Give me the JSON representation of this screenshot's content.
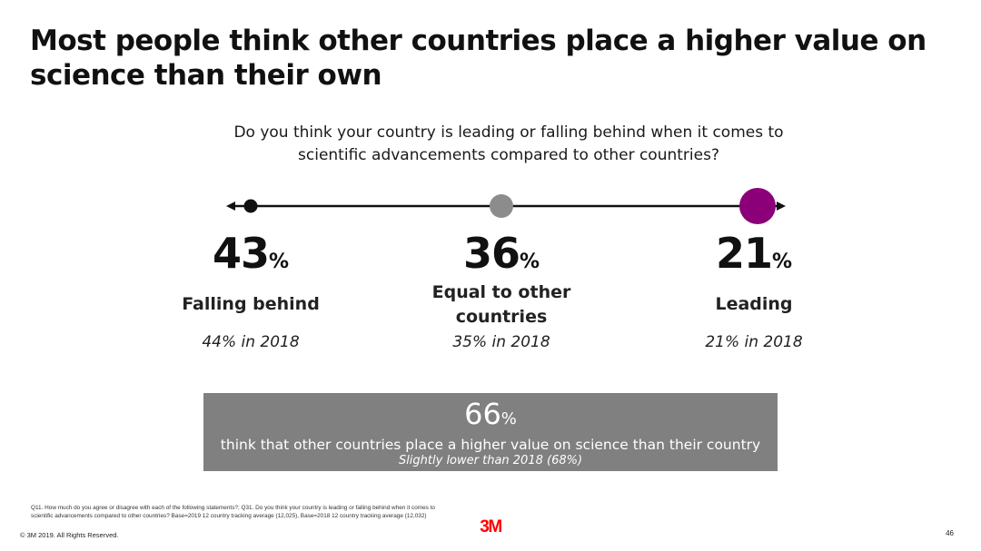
{
  "title": "Most people think other countries place a higher value on science than their own",
  "question": "Do you think your country is leading or falling behind when it comes to scientific advancements compared to other countries?",
  "colors": {
    "falling_behind": "#111111",
    "equal": "#8c8c8c",
    "leading": "#8b0079",
    "summary_bg": "#808080",
    "logo": "#ff0000"
  },
  "chart_data": {
    "type": "scale",
    "question": "Do you think your country is leading or falling behind when it comes to scientific advancements compared to other countries?",
    "categories": [
      "Falling behind",
      "Equal to other countries",
      "Leading"
    ],
    "values": [
      43,
      36,
      21
    ],
    "unit": "%",
    "prior_year": 2018,
    "prior_values": [
      44,
      35,
      21
    ],
    "prior_labels": [
      "44% in 2018",
      "35% in 2018",
      "21% in 2018"
    ]
  },
  "items": [
    {
      "value": "43",
      "unit": "%",
      "label": "Falling behind",
      "prior": "44% in 2018"
    },
    {
      "value": "36",
      "unit": "%",
      "label": "Equal to other countries",
      "prior": "35% in 2018"
    },
    {
      "value": "21",
      "unit": "%",
      "label": "Leading",
      "prior": "21% in 2018"
    }
  ],
  "summary": {
    "value": "66",
    "unit": "%",
    "text": "think that other countries place a higher value on science than their country",
    "note": "Slightly lower than 2018 (68%)"
  },
  "footnote": "Q11. How much do you agree or disagree with each of the following statements?; Q31. Do you think your country is leading or falling behind when it comes to scientific advancements compared to other countries? Base=2019 12 country tracking average (12,025), Base=2018 12 country tracking average (12,032)",
  "copyright": "© 3M 2019.   All Rights Reserved.",
  "logo": "3M",
  "page_number": "46"
}
